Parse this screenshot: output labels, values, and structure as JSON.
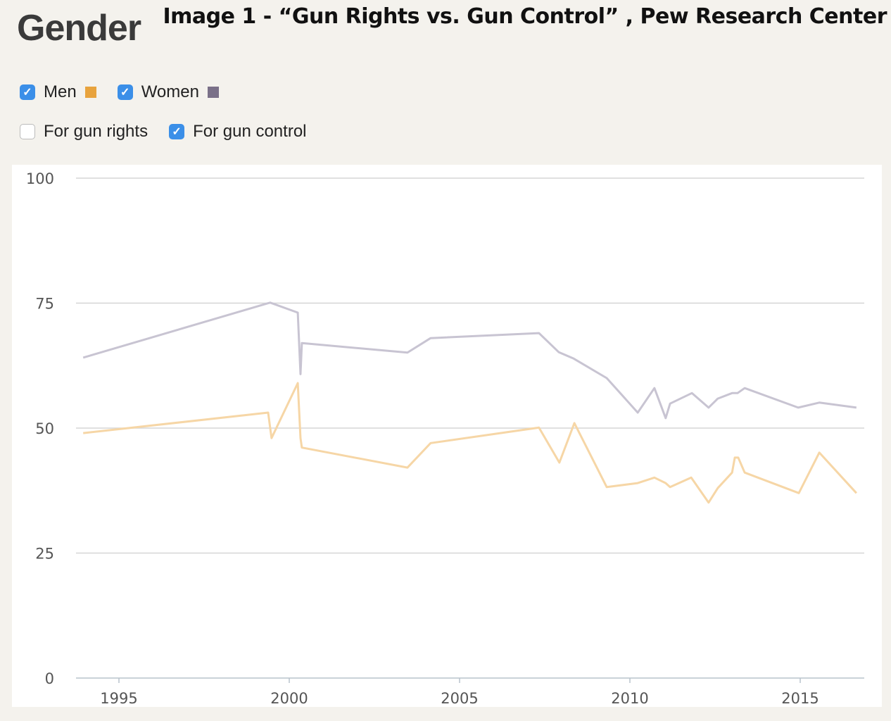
{
  "header": {
    "title": "Gender",
    "caption": "Image 1 - “Gun Rights vs. Gun Control” , Pew Research Center"
  },
  "filters": {
    "groups": [
      {
        "label": "Men",
        "checked": true,
        "color": "#e8a33d"
      },
      {
        "label": "Women",
        "checked": true,
        "color": "#7a7088"
      }
    ],
    "positions": [
      {
        "label": "For gun rights",
        "checked": false
      },
      {
        "label": "For gun control",
        "checked": true
      }
    ]
  },
  "chart_data": {
    "type": "line",
    "title": "",
    "xlabel": "",
    "ylabel": "",
    "ylim": [
      0,
      100
    ],
    "xlim": [
      1994,
      2016.9
    ],
    "yticks": [
      "0",
      "25",
      "50",
      "75",
      "100"
    ],
    "xticks": [
      "1995",
      "2000",
      "2005",
      "2010",
      "2015"
    ],
    "grid": true,
    "series": [
      {
        "name": "Women",
        "color": "#c8c4d2",
        "points": [
          [
            1993.95,
            64.1
          ],
          [
            1999.44,
            75.1
          ],
          [
            2000.25,
            73.1
          ],
          [
            2000.33,
            60.8
          ],
          [
            2000.37,
            67.0
          ],
          [
            2003.47,
            65.1
          ],
          [
            2004.15,
            68.0
          ],
          [
            2007.33,
            69.0
          ],
          [
            2007.91,
            65.2
          ],
          [
            2008.35,
            63.9
          ],
          [
            2009.32,
            60
          ],
          [
            2010.23,
            53.1
          ],
          [
            2010.72,
            58
          ],
          [
            2011.05,
            52
          ],
          [
            2011.18,
            54.9
          ],
          [
            2011.82,
            57
          ],
          [
            2012.31,
            54.1
          ],
          [
            2012.58,
            55.9
          ],
          [
            2013.0,
            57
          ],
          [
            2013.16,
            57
          ],
          [
            2013.37,
            58
          ],
          [
            2014.94,
            54.1
          ],
          [
            2015.56,
            55.1
          ],
          [
            2016.65,
            54.1
          ]
        ]
      },
      {
        "name": "Men",
        "color": "#f6d6a6",
        "points": [
          [
            1993.95,
            49
          ],
          [
            1999.38,
            53.1
          ],
          [
            1999.48,
            48
          ],
          [
            2000.25,
            59
          ],
          [
            2000.33,
            48
          ],
          [
            2000.37,
            46.1
          ],
          [
            2003.47,
            42.1
          ],
          [
            2004.15,
            47
          ],
          [
            2007.33,
            50.1
          ],
          [
            2007.93,
            43.1
          ],
          [
            2008.37,
            51
          ],
          [
            2009.32,
            38.2
          ],
          [
            2010.23,
            39
          ],
          [
            2010.72,
            40.1
          ],
          [
            2011.05,
            39
          ],
          [
            2011.18,
            38.2
          ],
          [
            2011.8,
            40.1
          ],
          [
            2012.31,
            35.1
          ],
          [
            2012.58,
            38
          ],
          [
            2013.0,
            41.1
          ],
          [
            2013.08,
            44.1
          ],
          [
            2013.18,
            44.1
          ],
          [
            2013.37,
            41.1
          ],
          [
            2014.96,
            37
          ],
          [
            2015.56,
            45.1
          ],
          [
            2016.65,
            37
          ]
        ]
      }
    ]
  }
}
